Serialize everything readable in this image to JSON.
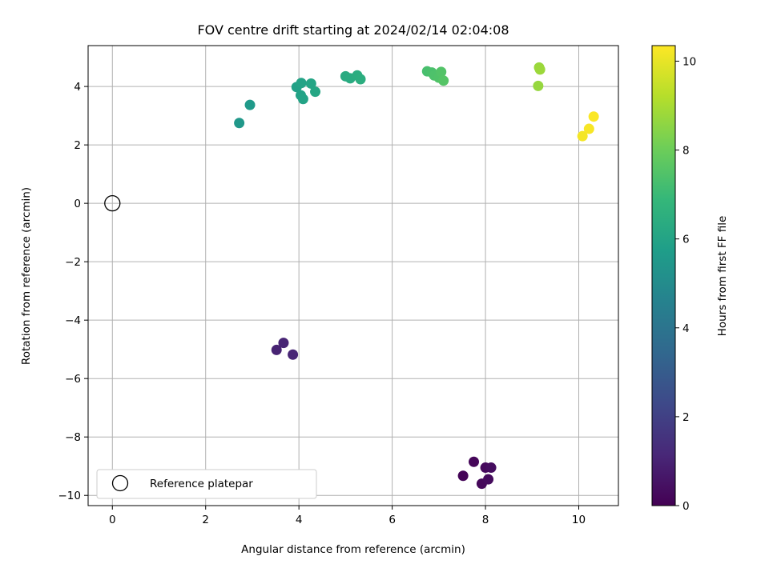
{
  "chart_data": {
    "type": "scatter",
    "title": "FOV centre drift starting at 2024/02/14 02:04:08",
    "xlabel": "Angular distance from reference (arcmin)",
    "ylabel": "Rotation from reference (arcmin)",
    "xlim": [
      -0.52,
      10.85
    ],
    "ylim": [
      -10.35,
      5.4
    ],
    "xticks": [
      0,
      2,
      4,
      6,
      8,
      10
    ],
    "yticks": [
      -10,
      -8,
      -6,
      -4,
      -2,
      0,
      2,
      4
    ],
    "grid": true,
    "colormap": "viridis",
    "colorbar": {
      "label": "Hours from first FF file",
      "range": [
        0,
        10.35
      ],
      "ticks": [
        0,
        2,
        4,
        6,
        8,
        10
      ]
    },
    "reference_point": {
      "x": 0,
      "y": 0
    },
    "legend": {
      "location": "lower-left",
      "entries": [
        "Reference platepar"
      ]
    },
    "points": [
      {
        "x": 7.52,
        "y": -9.33,
        "c": 0.1
      },
      {
        "x": 7.75,
        "y": -8.85,
        "c": 0.15
      },
      {
        "x": 7.92,
        "y": -9.6,
        "c": 0.2
      },
      {
        "x": 8.0,
        "y": -9.05,
        "c": 0.25
      },
      {
        "x": 8.06,
        "y": -9.45,
        "c": 0.3
      },
      {
        "x": 8.12,
        "y": -9.05,
        "c": 0.35
      },
      {
        "x": 3.52,
        "y": -5.02,
        "c": 1.0
      },
      {
        "x": 3.67,
        "y": -4.78,
        "c": 1.05
      },
      {
        "x": 3.87,
        "y": -5.18,
        "c": 1.1
      },
      {
        "x": 2.72,
        "y": 2.75,
        "c": 5.5
      },
      {
        "x": 2.95,
        "y": 3.37,
        "c": 5.6
      },
      {
        "x": 3.95,
        "y": 3.98,
        "c": 5.9
      },
      {
        "x": 4.04,
        "y": 3.7,
        "c": 5.95
      },
      {
        "x": 4.05,
        "y": 4.12,
        "c": 6.0
      },
      {
        "x": 4.09,
        "y": 3.57,
        "c": 6.0
      },
      {
        "x": 4.26,
        "y": 4.1,
        "c": 6.05
      },
      {
        "x": 4.35,
        "y": 3.82,
        "c": 6.1
      },
      {
        "x": 5.0,
        "y": 4.35,
        "c": 6.3
      },
      {
        "x": 5.1,
        "y": 4.28,
        "c": 6.35
      },
      {
        "x": 5.25,
        "y": 4.38,
        "c": 6.4
      },
      {
        "x": 5.32,
        "y": 4.25,
        "c": 6.45
      },
      {
        "x": 6.75,
        "y": 4.52,
        "c": 7.3
      },
      {
        "x": 6.85,
        "y": 4.48,
        "c": 7.35
      },
      {
        "x": 6.9,
        "y": 4.38,
        "c": 7.4
      },
      {
        "x": 7.0,
        "y": 4.3,
        "c": 7.45
      },
      {
        "x": 7.05,
        "y": 4.5,
        "c": 7.5
      },
      {
        "x": 7.1,
        "y": 4.2,
        "c": 7.55
      },
      {
        "x": 9.13,
        "y": 4.02,
        "c": 8.7
      },
      {
        "x": 9.15,
        "y": 4.65,
        "c": 8.75
      },
      {
        "x": 9.17,
        "y": 4.58,
        "c": 8.8
      },
      {
        "x": 10.08,
        "y": 2.3,
        "c": 10.2
      },
      {
        "x": 10.22,
        "y": 2.55,
        "c": 10.25
      },
      {
        "x": 10.32,
        "y": 2.97,
        "c": 10.3
      }
    ]
  }
}
